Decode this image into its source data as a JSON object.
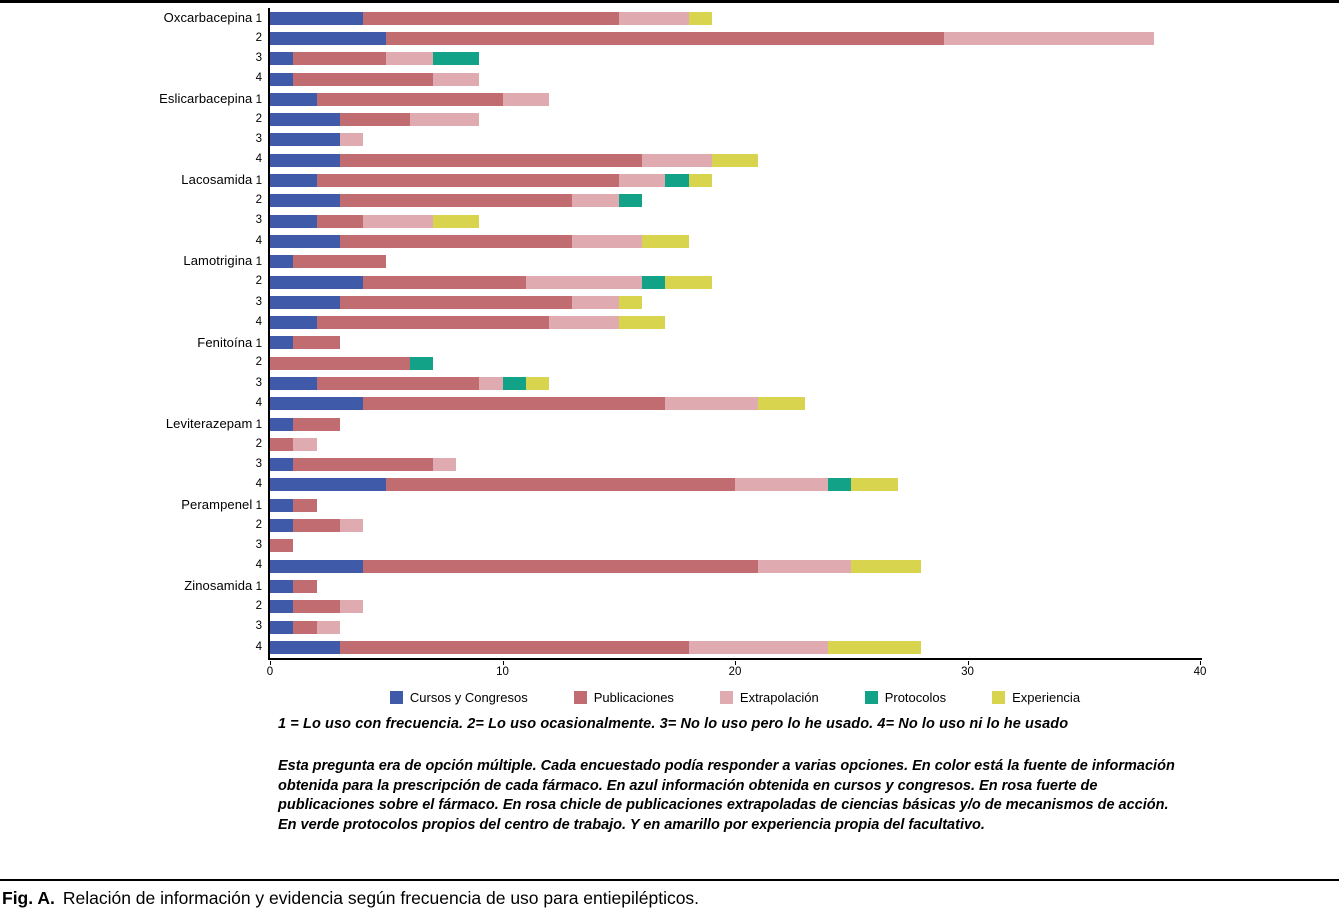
{
  "caption": {
    "label": "Fig. A.",
    "text": "Relación de información y evidencia según frecuencia de uso para entiepilépticos."
  },
  "footnotes": {
    "scale": "1 = Lo uso con frecuencia. 2= Lo uso ocasionalmente. 3= No lo uso pero lo he usado. 4= No lo uso ni lo he usado",
    "paragraph": "Esta pregunta era de opción múltiple. Cada encuestado podía responder a varias opciones. En color está la fuente de información obtenida para la prescripción de cada fármaco. En azul información obtenida en cursos y congresos. En rosa fuerte de publicaciones sobre el fármaco. En rosa chicle de publicaciones extrapoladas de ciencias básicas y/o de mecanismos de acción. En verde protocolos propios del centro de trabajo. Y en amarillo por experiencia propia del facultativo."
  },
  "chart_data": {
    "type": "bar",
    "orientation": "horizontal",
    "stacked": true,
    "xlim": [
      0,
      40
    ],
    "x_ticks": [
      0,
      10,
      20,
      30,
      40
    ],
    "grid": false,
    "legend_position": "bottom",
    "series": [
      {
        "name": "Cursos y Congresos",
        "color": "#3f5aa9"
      },
      {
        "name": "Publicaciones",
        "color": "#c06c70"
      },
      {
        "name": "Extrapolación",
        "color": "#e0abb0"
      },
      {
        "name": "Protocolos",
        "color": "#12a287"
      },
      {
        "name": "Experiencia",
        "color": "#d8d44e"
      }
    ],
    "row_scale_labels": [
      "1",
      "2",
      "3",
      "4"
    ],
    "groups": [
      {
        "drug": "Oxcarbacepina",
        "rows": [
          {
            "label": "1",
            "values": [
              4,
              11,
              3,
              0,
              1
            ]
          },
          {
            "label": "2",
            "values": [
              5,
              24,
              9,
              0,
              0
            ]
          },
          {
            "label": "3",
            "values": [
              1,
              4,
              2,
              2,
              0
            ]
          },
          {
            "label": "4",
            "values": [
              1,
              6,
              2,
              0,
              0
            ]
          }
        ]
      },
      {
        "drug": "Eslicarbacepina",
        "rows": [
          {
            "label": "1",
            "values": [
              2,
              8,
              2,
              0,
              0
            ]
          },
          {
            "label": "2",
            "values": [
              3,
              3,
              3,
              0,
              0
            ]
          },
          {
            "label": "3",
            "values": [
              3,
              0,
              1,
              0,
              0
            ]
          },
          {
            "label": "4",
            "values": [
              3,
              13,
              3,
              0,
              2
            ]
          }
        ]
      },
      {
        "drug": "Lacosamida",
        "rows": [
          {
            "label": "1",
            "values": [
              2,
              13,
              2,
              1,
              1
            ]
          },
          {
            "label": "2",
            "values": [
              3,
              10,
              2,
              1,
              0
            ]
          },
          {
            "label": "3",
            "values": [
              2,
              2,
              3,
              0,
              2
            ]
          },
          {
            "label": "4",
            "values": [
              3,
              10,
              3,
              0,
              2
            ]
          }
        ]
      },
      {
        "drug": "Lamotrigina",
        "rows": [
          {
            "label": "1",
            "values": [
              1,
              4,
              0,
              0,
              0
            ]
          },
          {
            "label": "2",
            "values": [
              4,
              7,
              5,
              1,
              2
            ]
          },
          {
            "label": "3",
            "values": [
              3,
              10,
              2,
              0,
              1
            ]
          },
          {
            "label": "4",
            "values": [
              2,
              10,
              3,
              0,
              2
            ]
          }
        ]
      },
      {
        "drug": "Fenitoína",
        "rows": [
          {
            "label": "1",
            "values": [
              1,
              2,
              0,
              0,
              0
            ]
          },
          {
            "label": "2",
            "values": [
              0,
              6,
              0,
              1,
              0
            ]
          },
          {
            "label": "3",
            "values": [
              2,
              7,
              1,
              1,
              1
            ]
          },
          {
            "label": "4",
            "values": [
              4,
              13,
              4,
              0,
              2
            ]
          }
        ]
      },
      {
        "drug": "Leviterazepam",
        "rows": [
          {
            "label": "1",
            "values": [
              1,
              2,
              0,
              0,
              0
            ]
          },
          {
            "label": "2",
            "values": [
              0,
              1,
              1,
              0,
              0
            ]
          },
          {
            "label": "3",
            "values": [
              1,
              6,
              1,
              0,
              0
            ]
          },
          {
            "label": "4",
            "values": [
              5,
              15,
              4,
              1,
              2
            ]
          }
        ]
      },
      {
        "drug": "Perampenel",
        "rows": [
          {
            "label": "1",
            "values": [
              1,
              1,
              0,
              0,
              0
            ]
          },
          {
            "label": "2",
            "values": [
              1,
              2,
              1,
              0,
              0
            ]
          },
          {
            "label": "3",
            "values": [
              0,
              1,
              0,
              0,
              0
            ]
          },
          {
            "label": "4",
            "values": [
              4,
              17,
              4,
              0,
              3
            ]
          }
        ]
      },
      {
        "drug": "Zinosamida",
        "rows": [
          {
            "label": "1",
            "values": [
              1,
              1,
              0,
              0,
              0
            ]
          },
          {
            "label": "2",
            "values": [
              1,
              2,
              1,
              0,
              0
            ]
          },
          {
            "label": "3",
            "values": [
              1,
              1,
              1,
              0,
              0
            ]
          },
          {
            "label": "4",
            "values": [
              3,
              15,
              6,
              0,
              4
            ]
          }
        ]
      }
    ]
  }
}
